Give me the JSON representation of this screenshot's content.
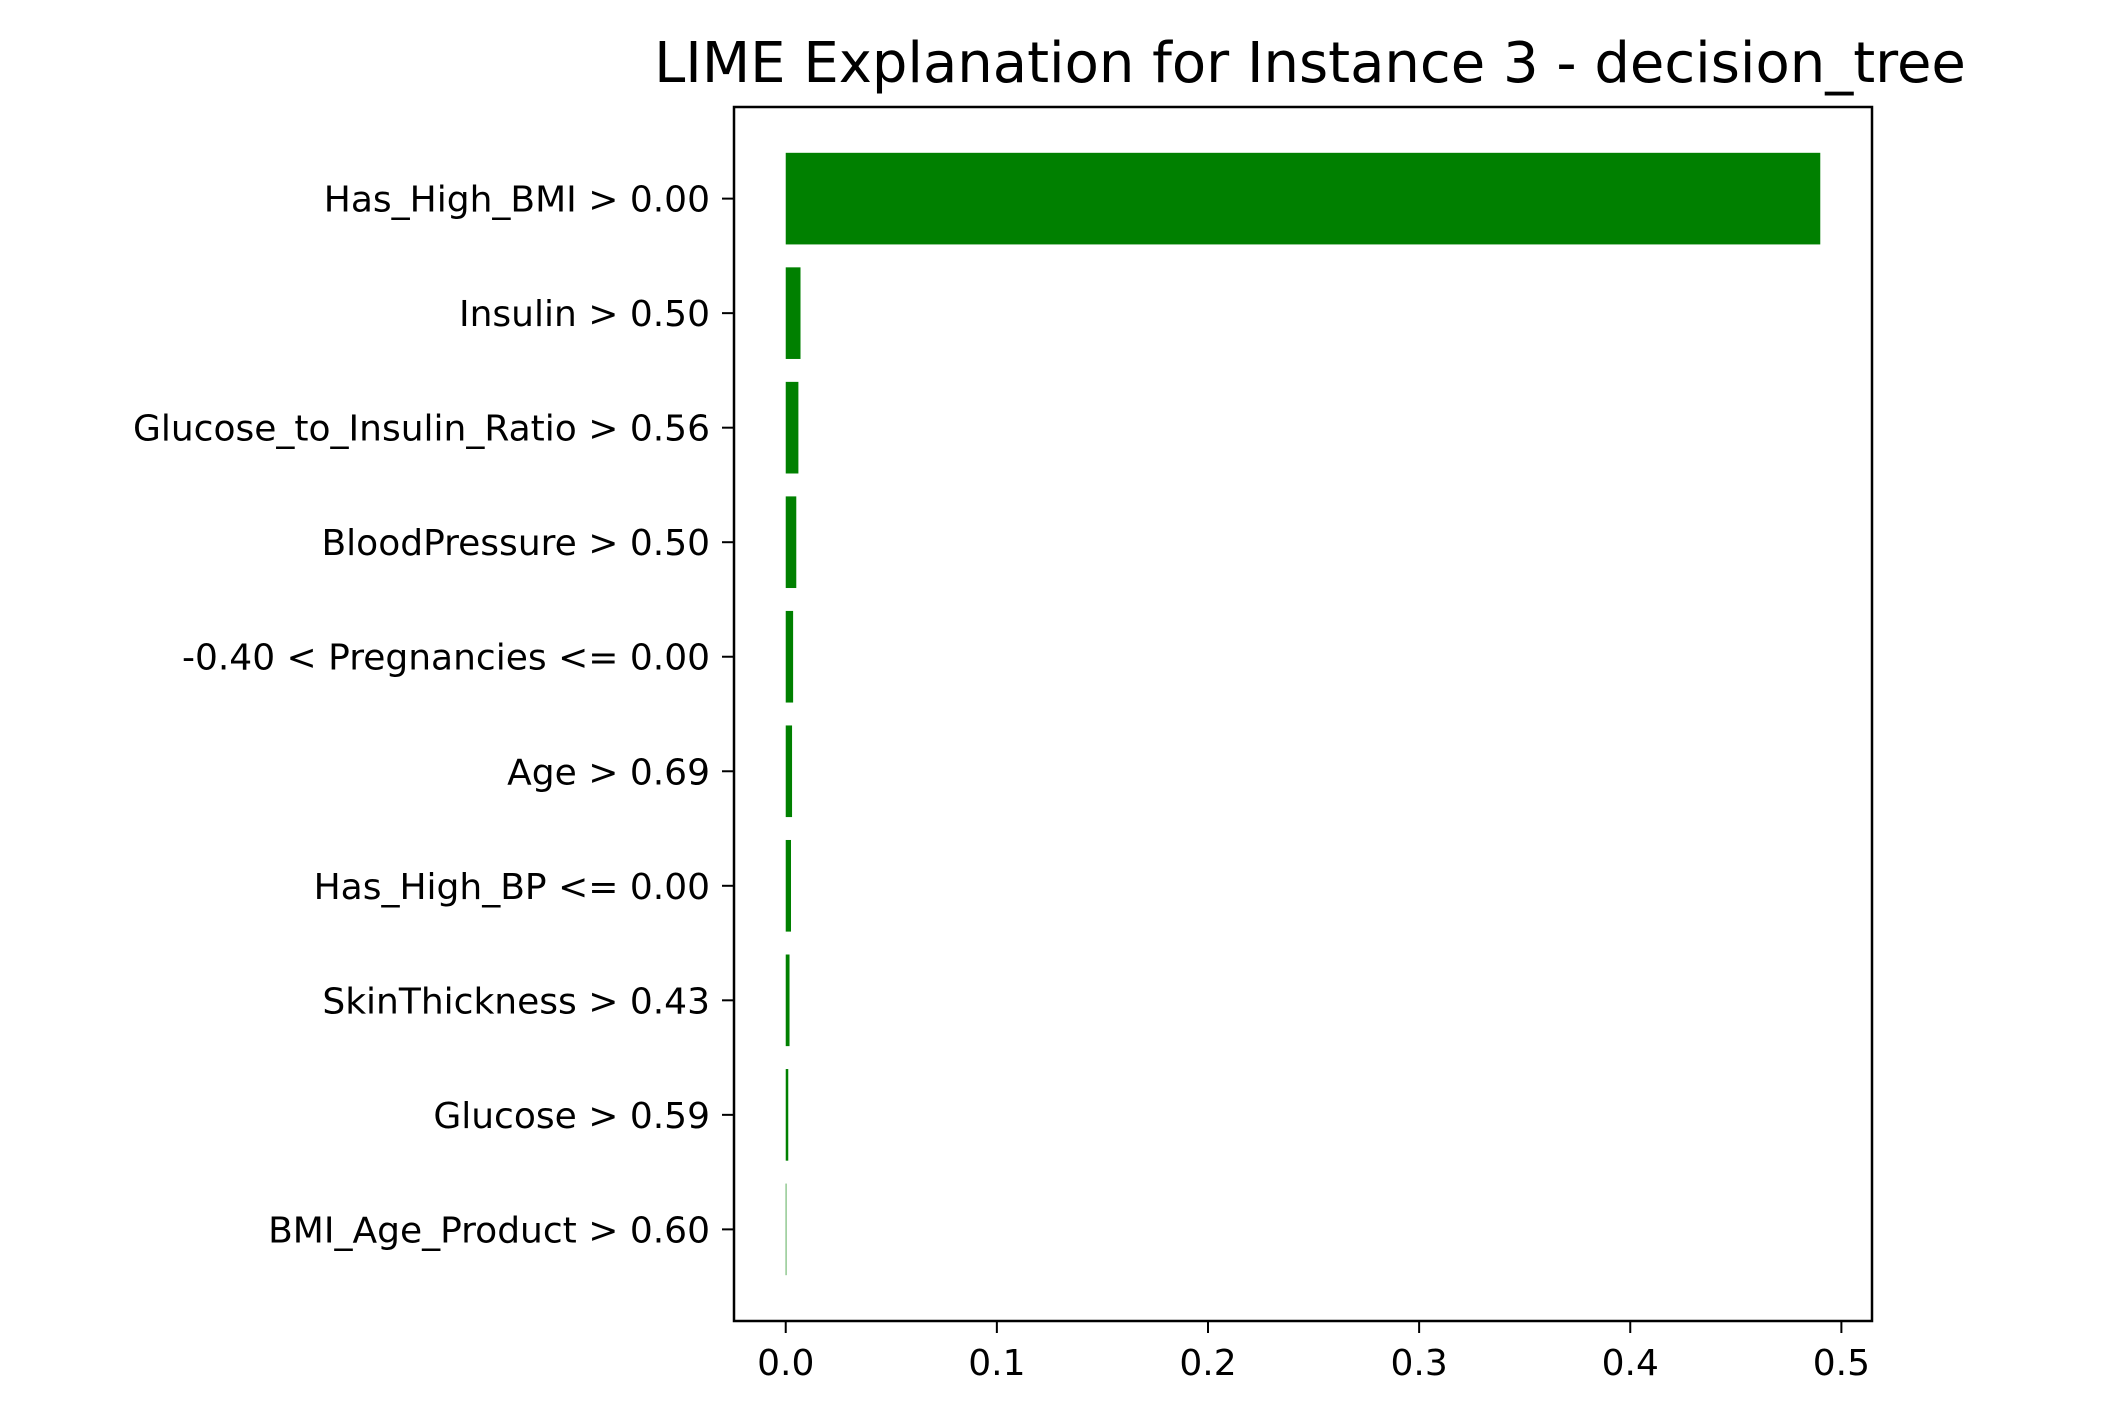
{
  "chart_data": {
    "type": "bar",
    "orientation": "horizontal",
    "title": "LIME Explanation for Instance 3 - decision_tree",
    "xlabel": "",
    "ylabel": "",
    "categories": [
      "Has_High_BMI > 0.00",
      "Insulin > 0.50",
      "Glucose_to_Insulin_Ratio > 0.56",
      "BloodPressure > 0.50",
      "-0.40 < Pregnancies <= 0.00",
      "Age > 0.69",
      "Has_High_BP <= 0.00",
      "SkinThickness > 0.43",
      "Glucose > 0.59",
      "BMI_Age_Product > 0.60"
    ],
    "values": [
      0.49,
      0.007,
      0.006,
      0.005,
      0.0035,
      0.003,
      0.0025,
      0.0018,
      0.0012,
      0.0003
    ],
    "xlim": [
      -0.0245,
      0.5145
    ],
    "xticks": [
      0.0,
      0.1,
      0.2,
      0.3,
      0.4,
      0.5
    ],
    "xtick_labels": [
      "0.0",
      "0.1",
      "0.2",
      "0.3",
      "0.4",
      "0.5"
    ],
    "bar_color": "#008000",
    "grid": false,
    "legend": "none"
  }
}
